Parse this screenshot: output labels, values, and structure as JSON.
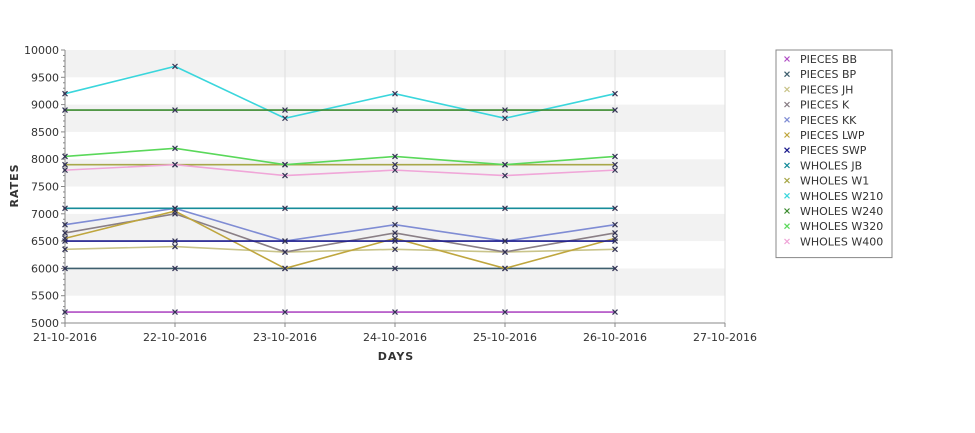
{
  "chart_data": {
    "type": "line",
    "xlabel": "DAYS",
    "ylabel": "RATES",
    "ylim": [
      5000,
      10000
    ],
    "yticks": [
      5000,
      5500,
      6000,
      6500,
      7000,
      7500,
      8000,
      8500,
      9000,
      9500,
      10000
    ],
    "x_ticks": [
      "21-10-2016",
      "22-10-2016",
      "23-10-2016",
      "24-10-2016",
      "25-10-2016",
      "26-10-2016",
      "27-10-2016"
    ],
    "x": [
      "21-10-2016",
      "22-10-2016",
      "23-10-2016",
      "24-10-2016",
      "25-10-2016",
      "26-10-2016"
    ],
    "grid": "alternating horizontal bands, vertical gridlines",
    "legend_position": "right",
    "series": [
      {
        "name": "PIECES BB",
        "color": "#b04ec4",
        "values": [
          5200,
          5200,
          5200,
          5200,
          5200,
          5200
        ]
      },
      {
        "name": "PIECES BP",
        "color": "#3f5f6e",
        "values": [
          6000,
          6000,
          6000,
          6000,
          6000,
          6000
        ]
      },
      {
        "name": "PIECES JH",
        "color": "#c9c48a",
        "values": [
          6350,
          6400,
          6300,
          6350,
          6300,
          6350
        ]
      },
      {
        "name": "PIECES K",
        "color": "#8a7f86",
        "values": [
          6650,
          7000,
          6300,
          6650,
          6300,
          6650
        ]
      },
      {
        "name": "PIECES KK",
        "color": "#7f8cd4",
        "values": [
          6800,
          7100,
          6500,
          6800,
          6500,
          6800
        ]
      },
      {
        "name": "PIECES LWP",
        "color": "#bfa63e",
        "values": [
          6550,
          7050,
          6000,
          6550,
          6000,
          6550
        ]
      },
      {
        "name": "PIECES SWP",
        "color": "#1a1a8c",
        "values": [
          6500,
          6500,
          6500,
          6500,
          6500,
          6500
        ]
      },
      {
        "name": "WHOLES JB",
        "color": "#168c9a",
        "values": [
          7100,
          7100,
          7100,
          7100,
          7100,
          7100
        ]
      },
      {
        "name": "WHOLES W1",
        "color": "#a8a84a",
        "values": [
          7900,
          7900,
          7900,
          7900,
          7900,
          7900
        ]
      },
      {
        "name": "WHOLES W210",
        "color": "#3ad6dc",
        "values": [
          9200,
          9700,
          8750,
          9200,
          8750,
          9200
        ]
      },
      {
        "name": "WHOLES W240",
        "color": "#3a8a2e",
        "values": [
          8900,
          8900,
          8900,
          8900,
          8900,
          8900
        ]
      },
      {
        "name": "WHOLES W320",
        "color": "#5ad85a",
        "values": [
          8050,
          8200,
          7900,
          8050,
          7900,
          8050
        ]
      },
      {
        "name": "WHOLES W400",
        "color": "#f0a6d8",
        "values": [
          7800,
          7900,
          7700,
          7800,
          7700,
          7800
        ]
      }
    ]
  }
}
